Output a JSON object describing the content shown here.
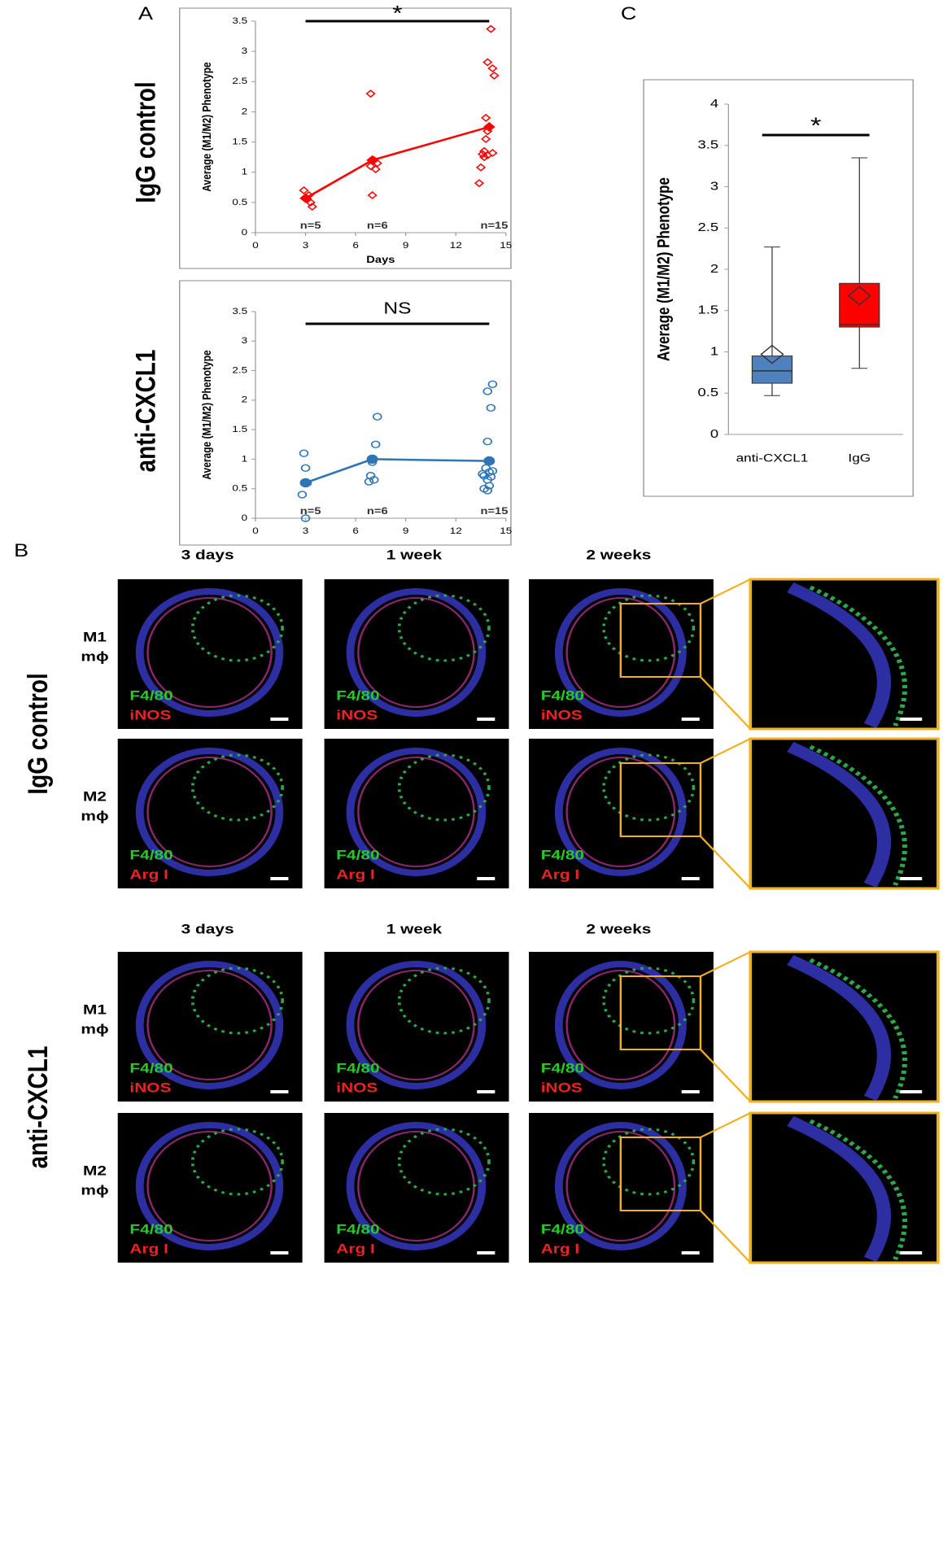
{
  "chart_data": [
    {
      "type": "scatter",
      "panel_label": "A",
      "row_label": "IgG control",
      "ylabel": "Average (M1/M2) Phenotype",
      "xlabel": "Days",
      "annotation": "*",
      "n_labels": [
        "n=5",
        "n=6",
        "n=15"
      ],
      "xlim": [
        0,
        15
      ],
      "xticks": [
        0,
        3,
        6,
        9,
        12,
        15
      ],
      "ylim": [
        0,
        3.5
      ],
      "yticks": [
        0,
        0.5,
        1,
        1.5,
        2,
        2.5,
        3,
        3.5
      ],
      "series": [
        {
          "color": "#ff0000",
          "marker": "diamond-open",
          "x": [
            2.9,
            3.2,
            3.1,
            3.3,
            3.4,
            6.9,
            7.1,
            7.3,
            6.9,
            7.2,
            7.0,
            14.1,
            13.9,
            14.2,
            14.3,
            13.8,
            14.0,
            13.9,
            13.8,
            13.7,
            14.2,
            13.6,
            13.9,
            13.7,
            13.5,
            13.4
          ],
          "values": [
            0.7,
            0.62,
            0.55,
            0.5,
            0.43,
            2.3,
            1.2,
            1.15,
            1.1,
            1.05,
            0.62,
            3.37,
            2.82,
            2.72,
            2.6,
            1.9,
            1.75,
            1.68,
            1.55,
            1.35,
            1.32,
            1.3,
            1.28,
            1.25,
            1.08,
            0.82
          ]
        },
        {
          "color": "#ff0000",
          "marker": "diamond-filled",
          "line": true,
          "x": [
            3,
            7,
            14
          ],
          "values": [
            0.57,
            1.2,
            1.75
          ]
        }
      ]
    },
    {
      "type": "scatter",
      "row_label": "anti-CXCL1",
      "ylabel": "Average (M1/M2) Phenotype",
      "annotation": "NS",
      "n_labels": [
        "n=5",
        "n=6",
        "n=15"
      ],
      "xlim": [
        0,
        15
      ],
      "xticks": [
        0,
        3,
        6,
        9,
        12,
        15
      ],
      "ylim": [
        0,
        3.5
      ],
      "yticks": [
        0,
        0.5,
        1,
        1.5,
        2,
        2.5,
        3,
        3.5
      ],
      "series": [
        {
          "color": "#2e75b6",
          "marker": "circle-open",
          "x": [
            2.9,
            3.0,
            3.1,
            2.8,
            3.0,
            7.3,
            7.2,
            7.0,
            6.9,
            7.1,
            6.8,
            14.2,
            13.9,
            14.1,
            13.9,
            14.0,
            13.8,
            14.2,
            14.0,
            13.6,
            13.7,
            14.1,
            13.9,
            14.0,
            13.7,
            13.9
          ],
          "values": [
            1.1,
            0.85,
            0.6,
            0.4,
            0.0,
            1.72,
            1.25,
            0.95,
            0.72,
            0.65,
            0.62,
            2.27,
            2.15,
            1.87,
            1.3,
            0.97,
            0.85,
            0.8,
            0.78,
            0.75,
            0.72,
            0.7,
            0.65,
            0.55,
            0.5,
            0.47
          ]
        },
        {
          "color": "#2e75b6",
          "marker": "circle-filled",
          "line": true,
          "x": [
            3,
            7,
            14
          ],
          "values": [
            0.6,
            1.0,
            0.97
          ]
        }
      ]
    },
    {
      "type": "box",
      "panel_label": "C",
      "ylabel": "Average (M1/M2) Phenotype",
      "annotation": "*",
      "categories": [
        "anti-CXCL1",
        "IgG"
      ],
      "ylim": [
        0,
        4
      ],
      "yticks": [
        0,
        0.5,
        1,
        1.5,
        2,
        2.5,
        3,
        3.5,
        4
      ],
      "boxes": [
        {
          "color": "#4f81bd",
          "min": 0.47,
          "q1": 0.62,
          "median": 0.77,
          "q3": 0.95,
          "max": 2.27,
          "mean": 0.97
        },
        {
          "color": "#ff0000",
          "min": 0.8,
          "q1": 1.3,
          "median": 1.33,
          "q3": 1.83,
          "max": 3.35,
          "mean": 1.68
        }
      ]
    }
  ],
  "panel_b": {
    "label": "B",
    "sections": [
      {
        "row_label": "IgG control",
        "columns": [
          "3 days",
          "1 week",
          "2 weeks"
        ],
        "rows": [
          {
            "label": [
              "M1",
              "mϕ"
            ],
            "stains": [
              "F4/80",
              "iNOS"
            ]
          },
          {
            "label": [
              "M2",
              "mϕ"
            ],
            "stains": [
              "F4/80",
              "Arg I"
            ]
          }
        ]
      },
      {
        "row_label": "anti-CXCL1",
        "columns": [
          "3 days",
          "1 week",
          "2 weeks"
        ],
        "rows": [
          {
            "label": [
              "M1",
              "mϕ"
            ],
            "stains": [
              "F4/80",
              "iNOS"
            ]
          },
          {
            "label": [
              "M2",
              "mϕ"
            ],
            "stains": [
              "F4/80",
              "Arg I"
            ]
          }
        ]
      }
    ]
  }
}
